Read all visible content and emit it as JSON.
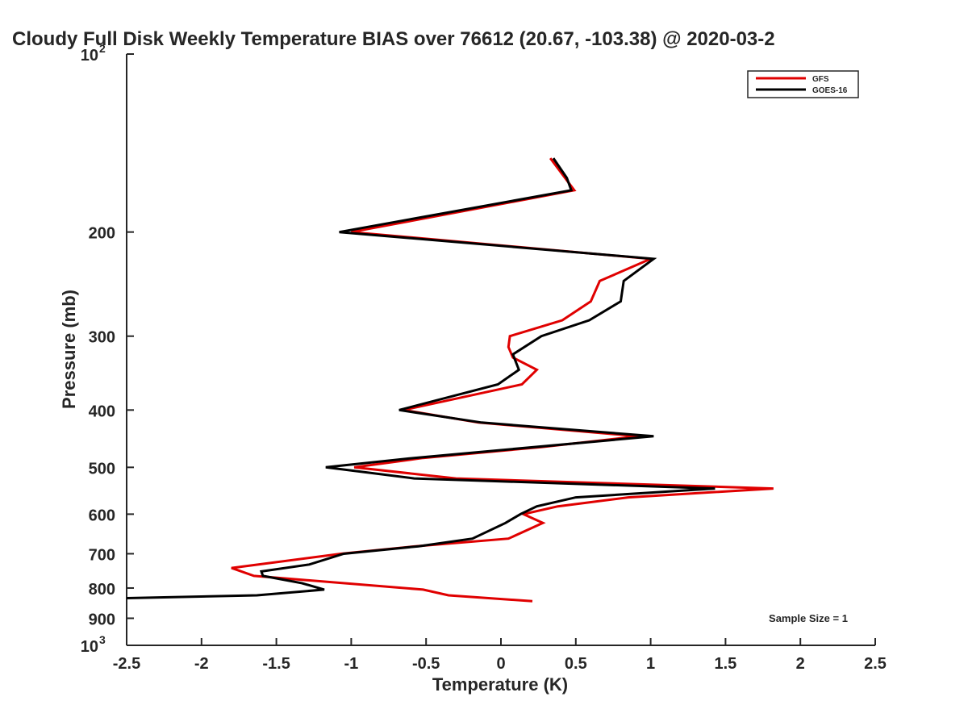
{
  "chart_data": {
    "type": "line",
    "title": "Cloudy Full Disk Weekly Temperature BIAS over 76612 (20.67, -103.38) @ 2020-03-2",
    "xlabel": "Temperature (K)",
    "ylabel": "Pressure (mb)",
    "xlim": [
      -2.5,
      2.5
    ],
    "ylim": [
      100,
      1000
    ],
    "y_scale": "log",
    "y_reversed": true,
    "grid": false,
    "legend_position": "top-right",
    "annotation": "Sample Size = 1",
    "x_ticks": [
      {
        "value": -2.5,
        "label": "-2.5"
      },
      {
        "value": -2,
        "label": "-2"
      },
      {
        "value": -1.5,
        "label": "-1.5"
      },
      {
        "value": -1,
        "label": "-1"
      },
      {
        "value": -0.5,
        "label": "-0.5"
      },
      {
        "value": 0,
        "label": "0"
      },
      {
        "value": 0.5,
        "label": "0.5"
      },
      {
        "value": 1,
        "label": "1"
      },
      {
        "value": 1.5,
        "label": "1.5"
      },
      {
        "value": 2,
        "label": "2"
      },
      {
        "value": 2.5,
        "label": "2.5"
      }
    ],
    "y_ticks": [
      {
        "value": 100,
        "label": "10",
        "sup": "2"
      },
      {
        "value": 200,
        "label": "200"
      },
      {
        "value": 300,
        "label": "300"
      },
      {
        "value": 400,
        "label": "400"
      },
      {
        "value": 500,
        "label": "500"
      },
      {
        "value": 600,
        "label": "600"
      },
      {
        "value": 700,
        "label": "700"
      },
      {
        "value": 800,
        "label": "800"
      },
      {
        "value": 900,
        "label": "900"
      },
      {
        "value": 1000,
        "label": "10",
        "sup": "3"
      }
    ],
    "series": [
      {
        "name": "GFS",
        "color": "#e00000",
        "points": [
          {
            "x": 0.33,
            "y": 150
          },
          {
            "x": 0.49,
            "y": 170
          },
          {
            "x": -1.0,
            "y": 200
          },
          {
            "x": 1.0,
            "y": 222
          },
          {
            "x": 0.66,
            "y": 242
          },
          {
            "x": 0.6,
            "y": 262
          },
          {
            "x": 0.41,
            "y": 282
          },
          {
            "x": 0.06,
            "y": 300
          },
          {
            "x": 0.05,
            "y": 313
          },
          {
            "x": 0.08,
            "y": 326
          },
          {
            "x": 0.24,
            "y": 342
          },
          {
            "x": 0.14,
            "y": 362
          },
          {
            "x": -0.65,
            "y": 400
          },
          {
            "x": -0.15,
            "y": 420
          },
          {
            "x": 0.92,
            "y": 443
          },
          {
            "x": 0.27,
            "y": 462
          },
          {
            "x": -0.52,
            "y": 482
          },
          {
            "x": -0.98,
            "y": 500
          },
          {
            "x": -0.3,
            "y": 522
          },
          {
            "x": 1.82,
            "y": 543
          },
          {
            "x": 0.85,
            "y": 562
          },
          {
            "x": 0.38,
            "y": 582
          },
          {
            "x": 0.15,
            "y": 600
          },
          {
            "x": 0.28,
            "y": 621
          },
          {
            "x": 0.05,
            "y": 660
          },
          {
            "x": -0.57,
            "y": 680
          },
          {
            "x": -1.07,
            "y": 700
          },
          {
            "x": -1.8,
            "y": 740
          },
          {
            "x": -1.65,
            "y": 763
          },
          {
            "x": -1.32,
            "y": 775
          },
          {
            "x": -0.52,
            "y": 805
          },
          {
            "x": -0.35,
            "y": 823
          },
          {
            "x": 0.21,
            "y": 842
          }
        ]
      },
      {
        "name": "GOES-16",
        "color": "#000000",
        "points": [
          {
            "x": 0.35,
            "y": 150
          },
          {
            "x": 0.44,
            "y": 162
          },
          {
            "x": 0.47,
            "y": 170
          },
          {
            "x": -1.08,
            "y": 200
          },
          {
            "x": 1.02,
            "y": 222
          },
          {
            "x": 0.82,
            "y": 242
          },
          {
            "x": 0.8,
            "y": 262
          },
          {
            "x": 0.59,
            "y": 282
          },
          {
            "x": 0.27,
            "y": 300
          },
          {
            "x": 0.08,
            "y": 322
          },
          {
            "x": 0.12,
            "y": 342
          },
          {
            "x": -0.02,
            "y": 362
          },
          {
            "x": -0.68,
            "y": 400
          },
          {
            "x": -0.13,
            "y": 420
          },
          {
            "x": 1.02,
            "y": 443
          },
          {
            "x": -0.58,
            "y": 482
          },
          {
            "x": -1.17,
            "y": 500
          },
          {
            "x": -0.58,
            "y": 522
          },
          {
            "x": 1.43,
            "y": 543
          },
          {
            "x": 0.5,
            "y": 562
          },
          {
            "x": 0.24,
            "y": 582
          },
          {
            "x": 0.13,
            "y": 600
          },
          {
            "x": 0.03,
            "y": 621
          },
          {
            "x": -0.19,
            "y": 660
          },
          {
            "x": -0.55,
            "y": 680
          },
          {
            "x": -1.05,
            "y": 700
          },
          {
            "x": -1.28,
            "y": 730
          },
          {
            "x": -1.6,
            "y": 750
          },
          {
            "x": -1.59,
            "y": 763
          },
          {
            "x": -1.33,
            "y": 785
          },
          {
            "x": -1.18,
            "y": 805
          },
          {
            "x": -1.63,
            "y": 823
          },
          {
            "x": -2.5,
            "y": 832
          }
        ]
      }
    ]
  }
}
